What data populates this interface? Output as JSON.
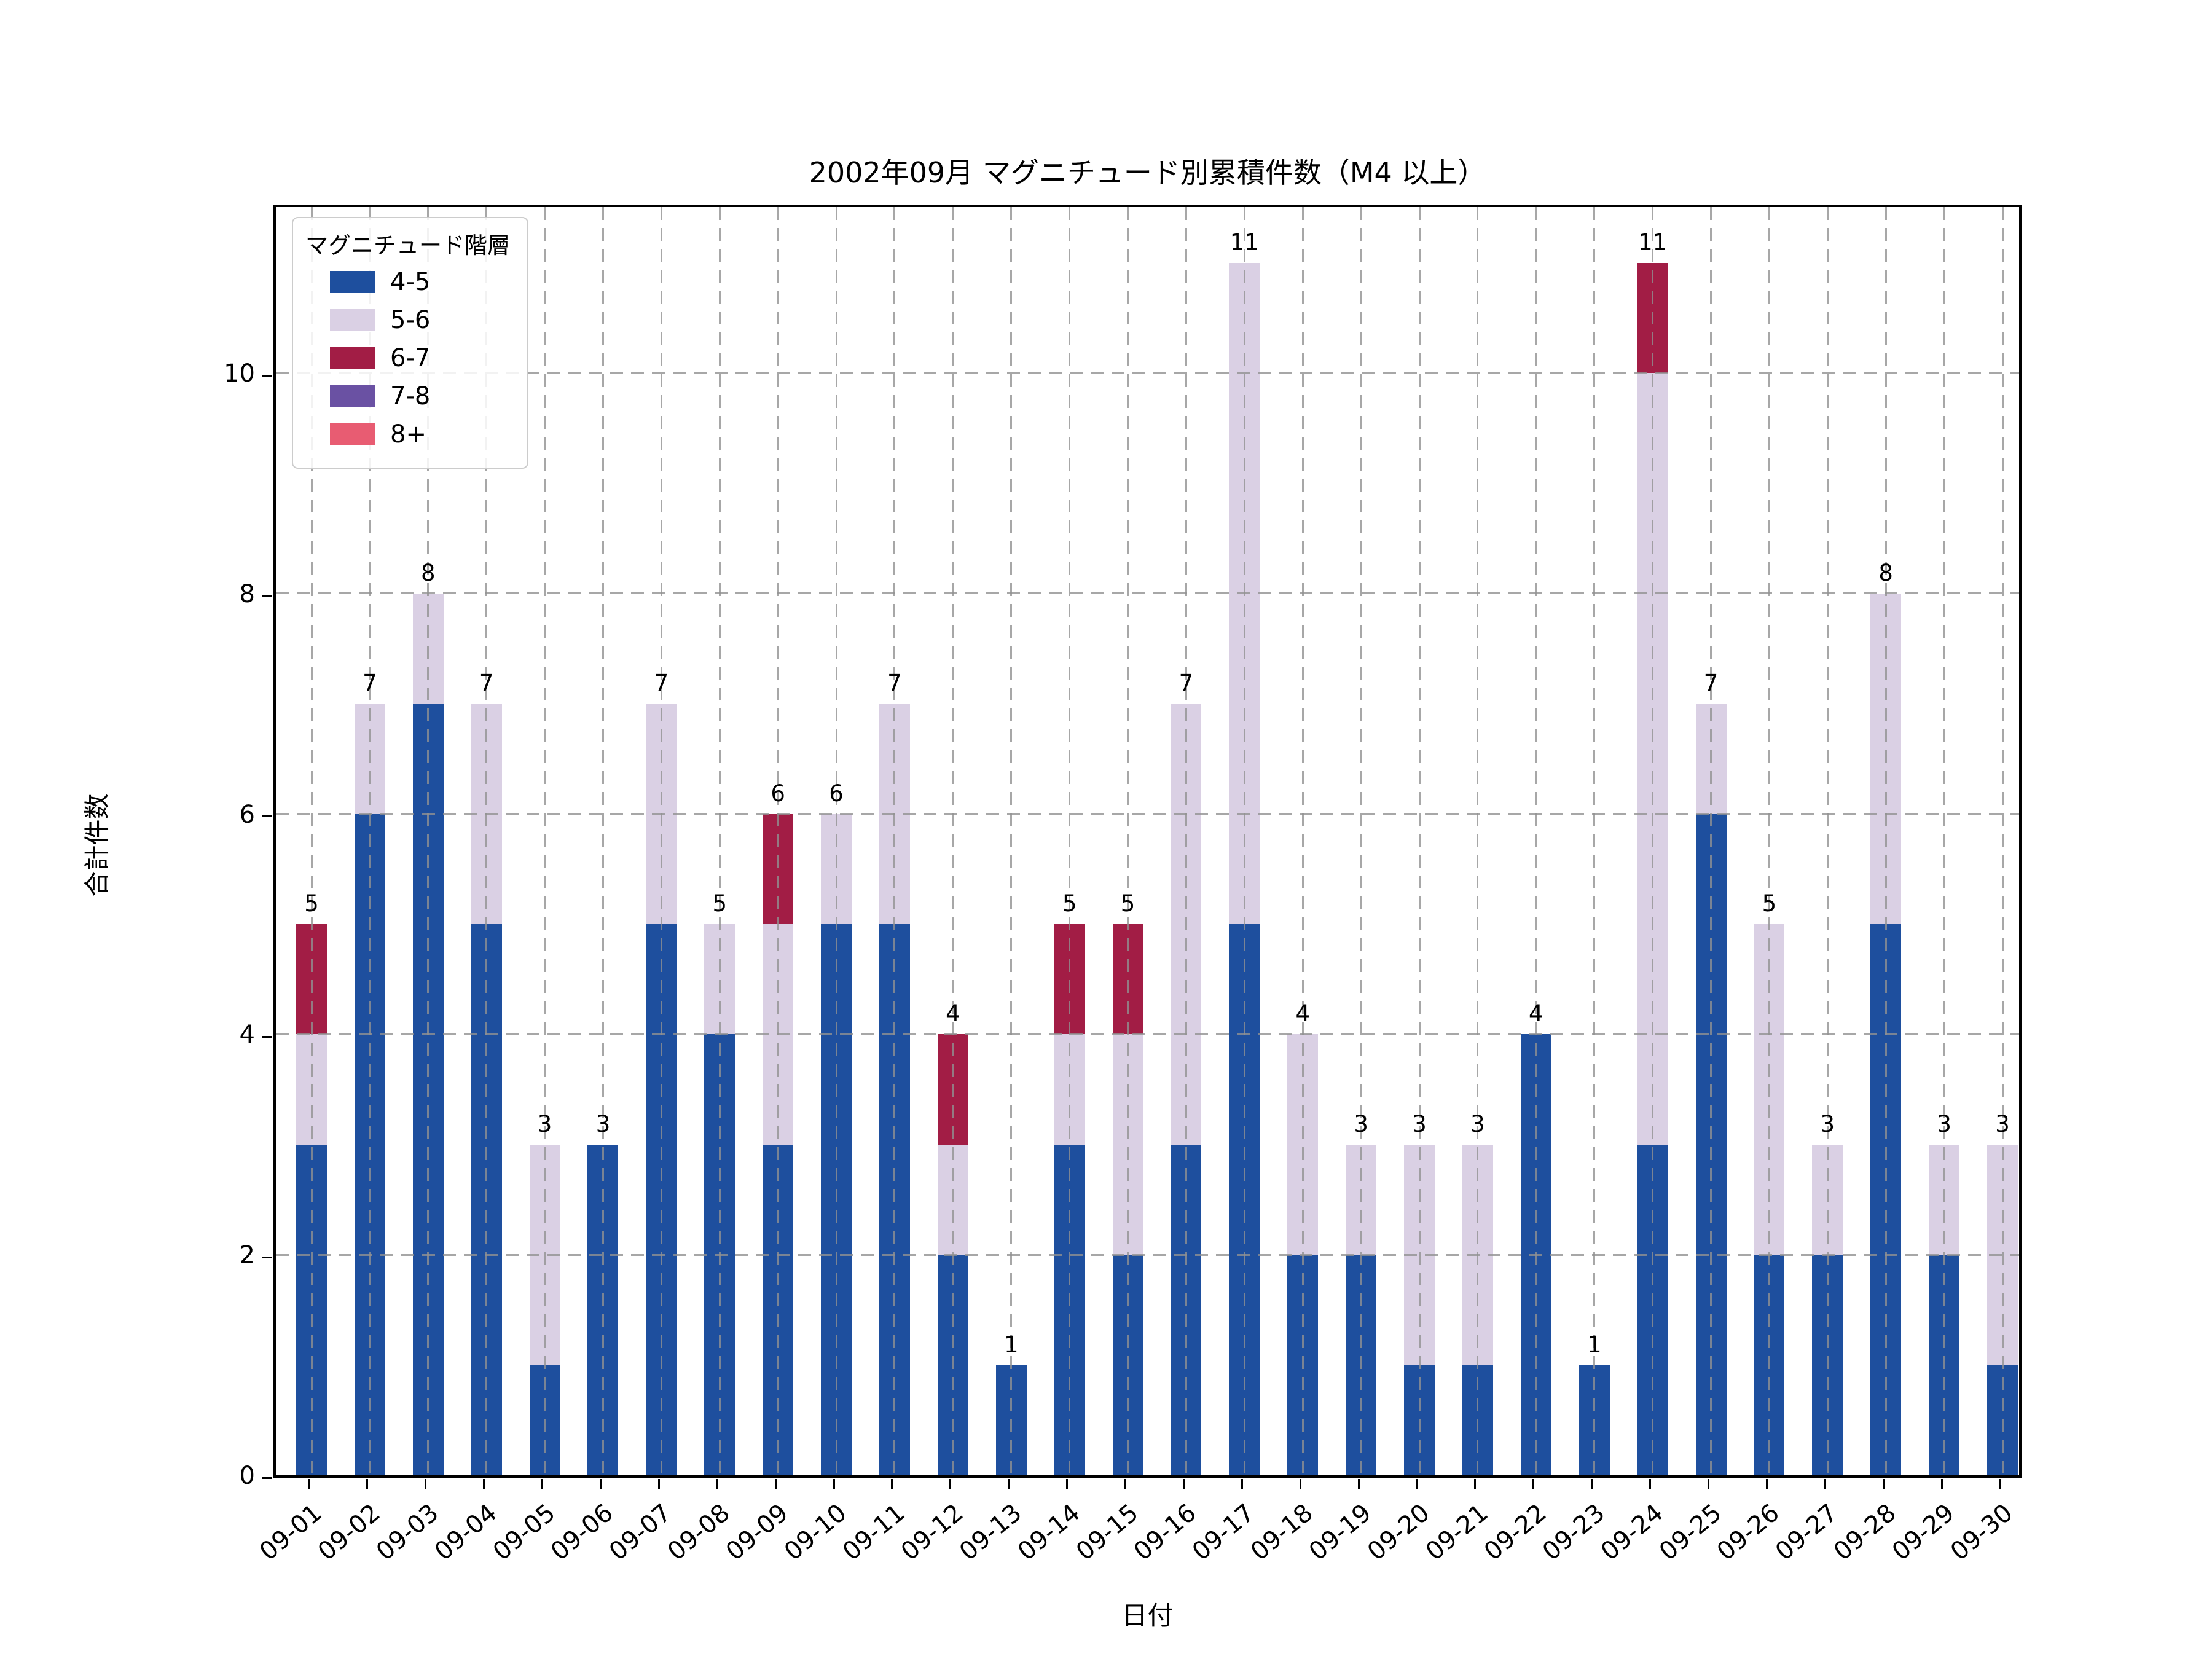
{
  "chart_data": {
    "type": "bar",
    "stacked": true,
    "title": "2002年09月 マグニチュード別累積件数（M4 以上）",
    "xlabel": "日付",
    "ylabel": "合計件数",
    "legend_title": "マグニチュード階層",
    "grid": "dashed",
    "legend_position": "upper-left",
    "background_color": "#ffffff",
    "ylim": [
      0,
      11.55
    ],
    "y_ticks": [
      0,
      2,
      4,
      6,
      8,
      10
    ],
    "categories": [
      "09-01",
      "09-02",
      "09-03",
      "09-04",
      "09-05",
      "09-06",
      "09-07",
      "09-08",
      "09-09",
      "09-10",
      "09-11",
      "09-12",
      "09-13",
      "09-14",
      "09-15",
      "09-16",
      "09-17",
      "09-18",
      "09-19",
      "09-20",
      "09-21",
      "09-22",
      "09-23",
      "09-24",
      "09-25",
      "09-26",
      "09-27",
      "09-28",
      "09-29",
      "09-30"
    ],
    "series": [
      {
        "name": "4-5",
        "color": "#1e4f9e",
        "values": [
          3,
          6,
          7,
          5,
          1,
          3,
          5,
          4,
          3,
          5,
          5,
          2,
          1,
          3,
          2,
          3,
          5,
          2,
          2,
          1,
          1,
          4,
          1,
          3,
          6,
          2,
          2,
          5,
          2,
          1
        ]
      },
      {
        "name": "5-6",
        "color": "#dad0e4",
        "values": [
          1,
          1,
          1,
          2,
          2,
          0,
          2,
          1,
          2,
          1,
          2,
          1,
          0,
          1,
          2,
          4,
          6,
          2,
          1,
          2,
          2,
          0,
          0,
          7,
          1,
          3,
          1,
          3,
          1,
          2
        ]
      },
      {
        "name": "6-7",
        "color": "#a21d45",
        "values": [
          1,
          0,
          0,
          0,
          0,
          0,
          0,
          0,
          1,
          0,
          0,
          1,
          0,
          1,
          1,
          0,
          0,
          0,
          0,
          0,
          0,
          0,
          0,
          1,
          0,
          0,
          0,
          0,
          0,
          0
        ]
      },
      {
        "name": "7-8",
        "color": "#6a51a3",
        "values": [
          0,
          0,
          0,
          0,
          0,
          0,
          0,
          0,
          0,
          0,
          0,
          0,
          0,
          0,
          0,
          0,
          0,
          0,
          0,
          0,
          0,
          0,
          0,
          0,
          0,
          0,
          0,
          0,
          0,
          0
        ]
      },
      {
        "name": "8+",
        "color": "#e85c72",
        "values": [
          0,
          0,
          0,
          0,
          0,
          0,
          0,
          0,
          0,
          0,
          0,
          0,
          0,
          0,
          0,
          0,
          0,
          0,
          0,
          0,
          0,
          0,
          0,
          0,
          0,
          0,
          0,
          0,
          0,
          0
        ]
      }
    ],
    "totals": [
      5,
      7,
      8,
      7,
      3,
      3,
      7,
      5,
      6,
      6,
      7,
      4,
      1,
      5,
      5,
      7,
      11,
      4,
      3,
      3,
      3,
      4,
      1,
      11,
      7,
      5,
      3,
      8,
      3,
      3
    ]
  }
}
